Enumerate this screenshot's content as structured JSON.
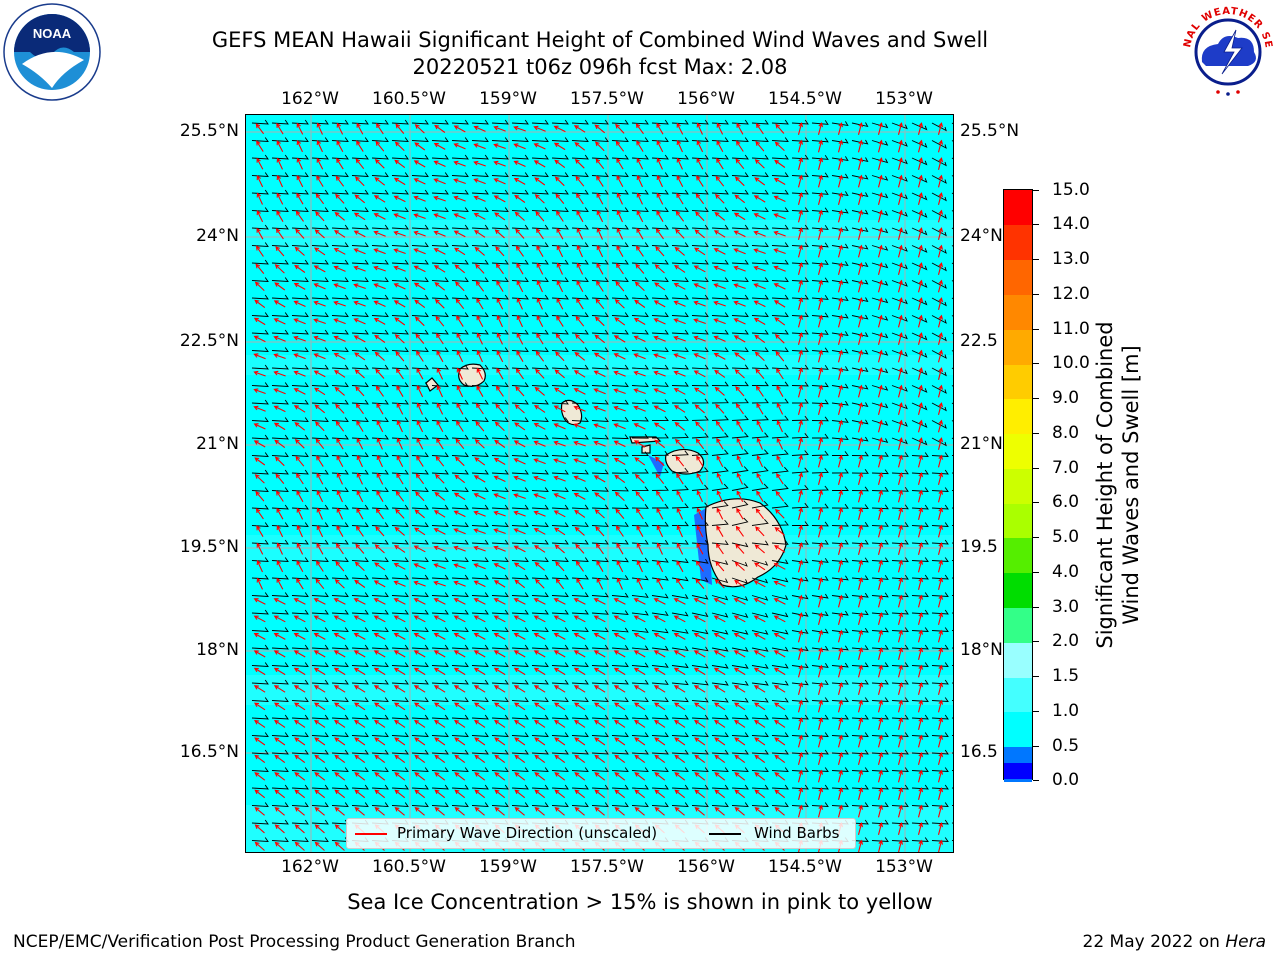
{
  "header": {
    "title_line1": "GEFS MEAN Hawaii Significant Height of Combined Wind Waves and Swell",
    "title_line2": "20220521 t06z 096h fcst   Max: 2.08"
  },
  "logos": {
    "left": "NOAA",
    "right": "NATIONAL WEATHER SERVICE"
  },
  "map": {
    "lon_labels": [
      "162°W",
      "160.5°W",
      "159°W",
      "157.5°W",
      "156°W",
      "154.5°W",
      "153°W"
    ],
    "lat_labels_left": [
      "25.5°N",
      "24°N",
      "22.5°N",
      "21°N",
      "19.5°N",
      "18°N",
      "16.5°N"
    ],
    "lat_labels_right": [
      "25.5°N",
      "24°N",
      "22.5",
      "21°N",
      "19.5",
      "18°N",
      "16.5"
    ],
    "colors": {
      "ocean_low": "#00ffff",
      "ocean_mid": "#4cffff",
      "land": "#efe9d6",
      "primary_wave": "#ff0000",
      "wind_barb": "#000000"
    }
  },
  "legend": {
    "primary": "Primary Wave Direction (unscaled)",
    "barbs": "Wind Barbs"
  },
  "colorbar": {
    "title": "Significant Height of Combined Wind Waves and Swell [m]",
    "title_line1": "Significant Height of Combined",
    "title_line2": "Wind Waves and Swell [m]",
    "ticks": [
      "15.0",
      "14.0",
      "13.0",
      "12.0",
      "11.0",
      "10.0",
      "9.0",
      "8.0",
      "7.0",
      "6.0",
      "5.0",
      "4.0",
      "3.0",
      "2.0",
      "1.5",
      "1.0",
      "0.5",
      "0.0"
    ],
    "colors": [
      "#ff0000",
      "#ff3300",
      "#ff6600",
      "#ff8800",
      "#ffaa00",
      "#ffcc00",
      "#ffee00",
      "#eeff00",
      "#ccff00",
      "#aaff00",
      "#55ee00",
      "#00dd00",
      "#33ff88",
      "#99ffff",
      "#44ffff",
      "#00ffff",
      "#0077ff",
      "#0000ff"
    ]
  },
  "footer": {
    "sea_ice": "Sea Ice Concentration > 15% is shown in pink to yellow",
    "left": "NCEP/EMC/Verification Post Processing Product Generation Branch",
    "right_date": "22 May 2022 on ",
    "right_host": "Hera"
  }
}
